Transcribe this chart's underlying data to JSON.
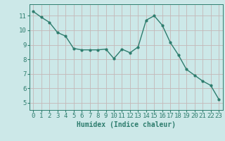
{
  "x": [
    0,
    1,
    2,
    3,
    4,
    5,
    6,
    7,
    8,
    9,
    10,
    11,
    12,
    13,
    14,
    15,
    16,
    17,
    18,
    19,
    20,
    21,
    22,
    23
  ],
  "y": [
    11.3,
    10.9,
    10.55,
    9.85,
    9.6,
    8.75,
    8.65,
    8.65,
    8.65,
    8.7,
    8.05,
    8.7,
    8.45,
    8.85,
    10.7,
    11.0,
    10.35,
    9.15,
    8.3,
    7.3,
    6.9,
    6.5,
    6.2,
    5.25
  ],
  "line_color": "#2e7d6e",
  "marker": "o",
  "markersize": 2.0,
  "linewidth": 1.0,
  "bg_color": "#cce8e8",
  "grid_color": "#c4b8b8",
  "xlabel": "Humidex (Indice chaleur)",
  "xlabel_fontsize": 7,
  "tick_fontsize": 6.5,
  "xlim": [
    -0.5,
    23.5
  ],
  "ylim": [
    4.5,
    11.8
  ],
  "yticks": [
    5,
    6,
    7,
    8,
    9,
    10,
    11
  ],
  "xticks": [
    0,
    1,
    2,
    3,
    4,
    5,
    6,
    7,
    8,
    9,
    10,
    11,
    12,
    13,
    14,
    15,
    16,
    17,
    18,
    19,
    20,
    21,
    22,
    23
  ]
}
